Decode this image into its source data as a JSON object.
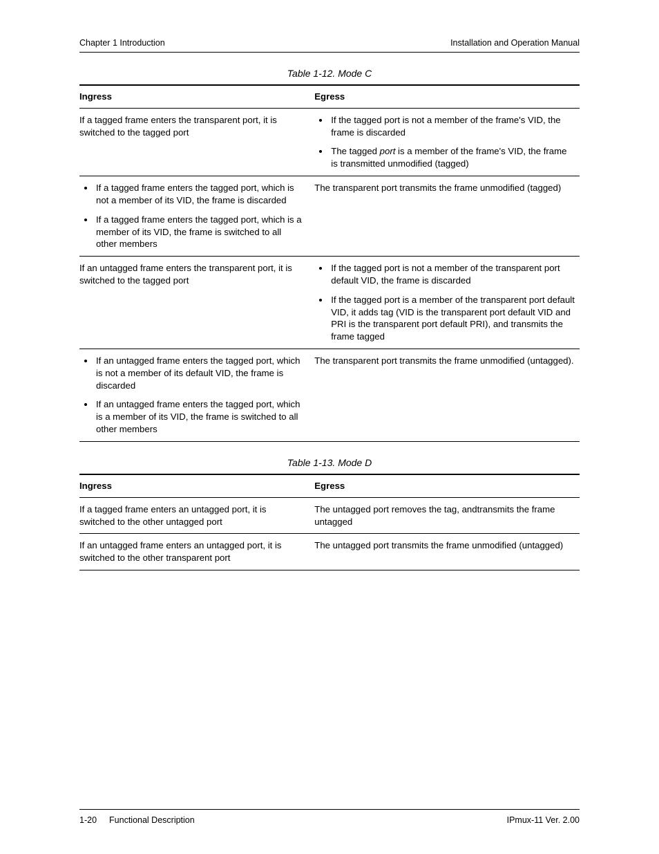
{
  "header": {
    "left": "Chapter 1  Introduction",
    "right": "Installation and Operation Manual"
  },
  "table12": {
    "caption": "Table 1-12.  Mode C",
    "head": {
      "ingress": "Ingress",
      "egress": "Egress"
    },
    "rows": [
      {
        "ingress_plain": "If a tagged frame enters the transparent port, it is switched to the tagged port",
        "egress_bullets": [
          "If the tagged port is not a member of the frame's VID, the frame is discarded",
          "The tagged <em class=\"it\">port</em> is a member of the frame's VID, the frame is transmitted unmodified (tagged)"
        ]
      },
      {
        "ingress_bullets": [
          "If a tagged frame enters the tagged port, which is not a member of its VID, the frame is discarded",
          "If a tagged frame enters the tagged port, which is a member of its VID, the frame is switched to all other members"
        ],
        "egress_plain": "The transparent port transmits the frame unmodified (tagged)"
      },
      {
        "ingress_plain": "If an untagged frame enters the transparent port, it is switched to the tagged port",
        "egress_bullets": [
          "If the tagged port is not a member of the transparent port default VID, the frame is discarded",
          "If the tagged port is a member of the transparent port default VID, it adds tag (VID is the transparent port default VID and PRI is the transparent port default PRI), and transmits the frame tagged"
        ]
      },
      {
        "ingress_bullets": [
          "If an untagged frame enters the tagged port, which is not a member of its default VID, the frame is discarded",
          "If an untagged frame enters the tagged port, which is a member of its VID, the frame is switched to all other members"
        ],
        "egress_plain": "The transparent port transmits the frame unmodified (untagged)."
      }
    ]
  },
  "table13": {
    "caption": "Table 1-13.  Mode D",
    "head": {
      "ingress": "Ingress",
      "egress": "Egress"
    },
    "rows": [
      {
        "ingress_plain": "If a tagged frame enters an untagged port, it is switched to the other untagged port",
        "egress_plain": "The untagged port removes the tag, andtransmits the frame untagged"
      },
      {
        "ingress_plain": "If an untagged frame enters an untagged port, it is switched to the other transparent port",
        "egress_plain": "The untagged port transmits the frame unmodified (untagged)"
      }
    ]
  },
  "footer": {
    "page": "1-20",
    "section": "Functional Description",
    "product": "IPmux-11 Ver. 2.00"
  }
}
